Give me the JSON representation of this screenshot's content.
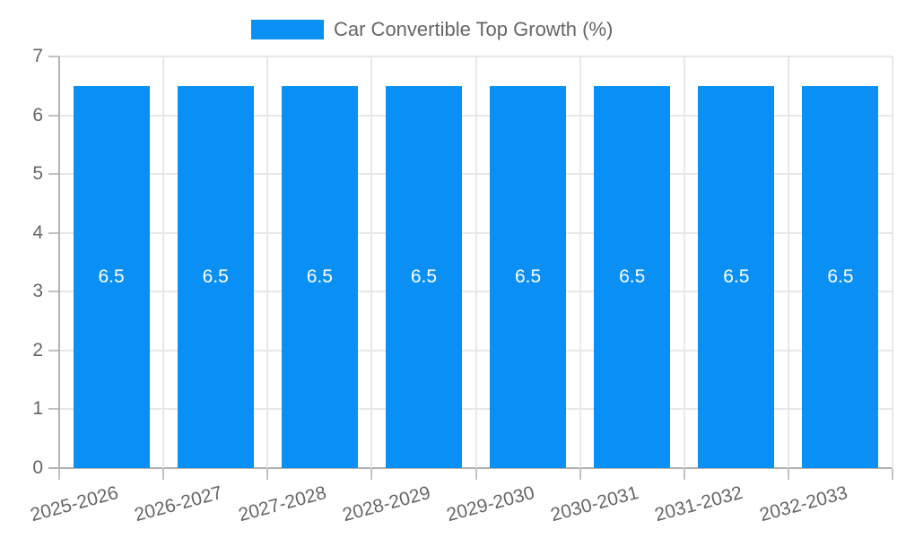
{
  "chart_data": {
    "type": "bar",
    "title": "Car Convertible Top Growth (%)",
    "categories": [
      "2025-2026",
      "2026-2027",
      "2027-2028",
      "2028-2029",
      "2029-2030",
      "2030-2031",
      "2031-2032",
      "2032-2033"
    ],
    "series": [
      {
        "name": "Car Convertible Top Growth (%)",
        "values": [
          6.5,
          6.5,
          6.5,
          6.5,
          6.5,
          6.5,
          6.5,
          6.5
        ]
      }
    ],
    "bar_value_labels": [
      "6.5",
      "6.5",
      "6.5",
      "6.5",
      "6.5",
      "6.5",
      "6.5",
      "6.5"
    ],
    "xlabel": "",
    "ylabel": "",
    "ylim": [
      0,
      7
    ],
    "yticks": [
      0,
      1,
      2,
      3,
      4,
      5,
      6,
      7
    ],
    "grid": true,
    "legend_position": "top-center",
    "x_label_rotation_deg": -15,
    "colors": {
      "bar": "#0a8ff5",
      "bar_value_label": "#ffffff",
      "axis_text": "#666666",
      "gridline": "#e8e8e8",
      "axis_line": "#b3b3b3",
      "tick_mark": "#c2c2c2",
      "background": "#ffffff"
    }
  }
}
